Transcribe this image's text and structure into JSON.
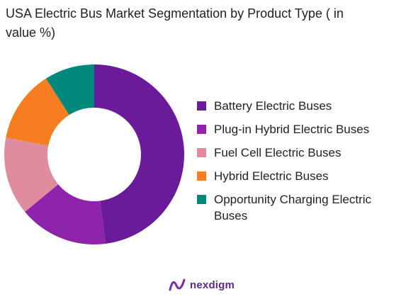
{
  "chart_data": {
    "type": "pie",
    "title": "USA Electric Bus Market Segmentation by Product Type ( in value %)",
    "donut": true,
    "legend_position": "right",
    "series": [
      {
        "name": "Battery Electric Buses",
        "value": 48,
        "color": "#6a1b9a"
      },
      {
        "name": "Plug-in Hybrid Electric Buses",
        "value": 16,
        "color": "#8e24aa"
      },
      {
        "name": "Fuel Cell Electric Buses",
        "value": 14,
        "color": "#e08c9f"
      },
      {
        "name": "Hybrid Electric Buses",
        "value": 13,
        "color": "#f57f20"
      },
      {
        "name": "Opportunity Charging Electric Buses",
        "value": 9,
        "color": "#00897b"
      }
    ]
  },
  "brand": {
    "name": "nexdigm"
  }
}
